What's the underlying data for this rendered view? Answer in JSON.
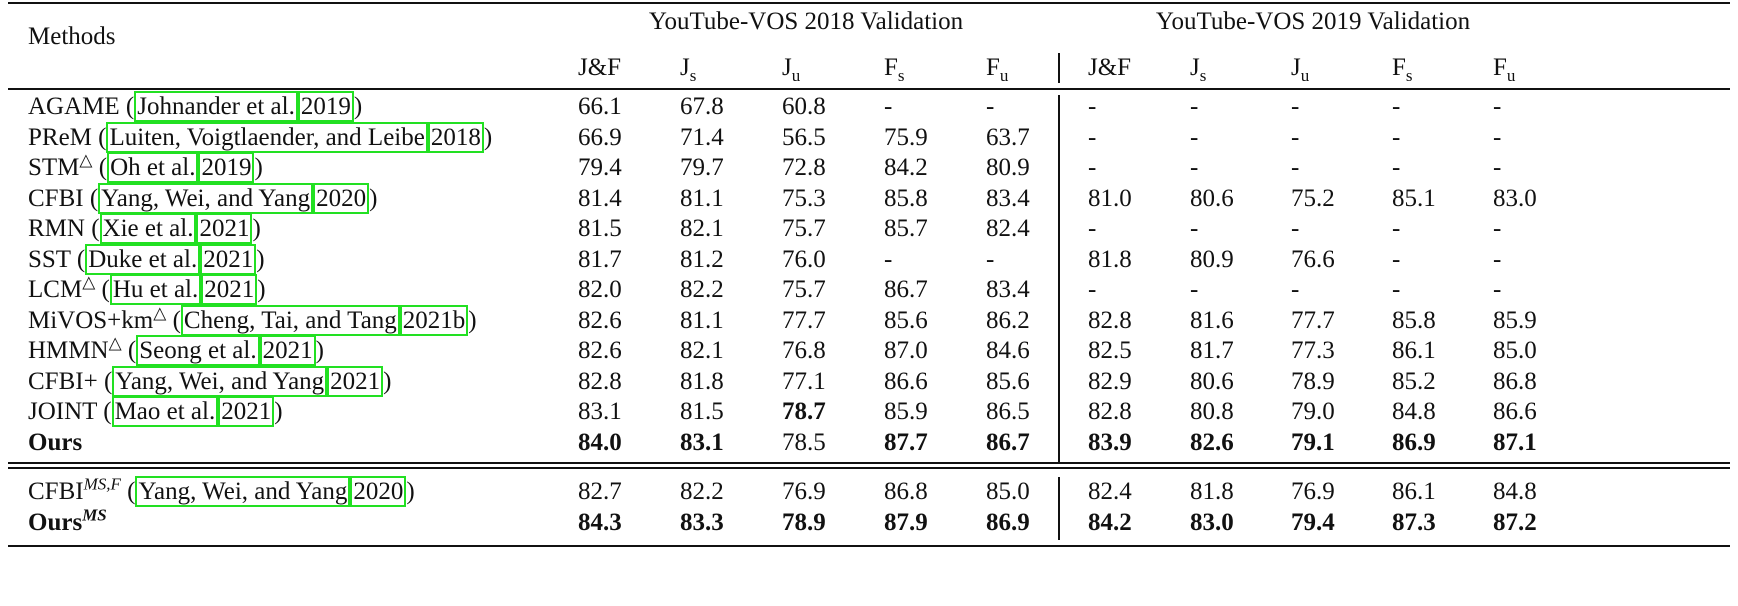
{
  "table": {
    "method_header": "Methods",
    "groups": [
      {
        "title": "YouTube-VOS 2018 Validation",
        "columns": [
          {
            "main": "J&F"
          },
          {
            "main": "J",
            "sub": "s"
          },
          {
            "main": "J",
            "sub": "u"
          },
          {
            "main": "F",
            "sub": "s"
          },
          {
            "main": "F",
            "sub": "u"
          }
        ]
      },
      {
        "title": "YouTube-VOS 2019 Validation",
        "columns": [
          {
            "main": "J&F"
          },
          {
            "main": "J",
            "sub": "s"
          },
          {
            "main": "J",
            "sub": "u"
          },
          {
            "main": "F",
            "sub": "s"
          },
          {
            "main": "F",
            "sub": "u"
          }
        ]
      }
    ],
    "sections": [
      {
        "rows": [
          {
            "method": "AGAME",
            "prefix": "(",
            "authors": "Johnander et al.",
            "year": "2019",
            "suffix": ")",
            "values": [
              "66.1",
              "67.8",
              "60.8",
              "-",
              "-",
              "-",
              "-",
              "-",
              "-",
              "-"
            ]
          },
          {
            "method": "PReM",
            "prefix": "(",
            "authors": "Luiten, Voigtlaender, and Leibe",
            "year": "2018",
            "suffix": ")",
            "values": [
              "66.9",
              "71.4",
              "56.5",
              "75.9",
              "63.7",
              "-",
              "-",
              "-",
              "-",
              "-"
            ]
          },
          {
            "method": "STM",
            "sup": "△",
            "prefix": "(",
            "authors": "Oh et al.",
            "year": "2019",
            "suffix": ")",
            "values": [
              "79.4",
              "79.7",
              "72.8",
              "84.2",
              "80.9",
              "-",
              "-",
              "-",
              "-",
              "-"
            ]
          },
          {
            "method": "CFBI",
            "prefix": "(",
            "authors": "Yang, Wei, and Yang",
            "year": "2020",
            "suffix": ")",
            "values": [
              "81.4",
              "81.1",
              "75.3",
              "85.8",
              "83.4",
              "81.0",
              "80.6",
              "75.2",
              "85.1",
              "83.0"
            ]
          },
          {
            "method": "RMN",
            "prefix": "(",
            "authors": "Xie et al.",
            "year": "2021",
            "suffix": ")",
            "values": [
              "81.5",
              "82.1",
              "75.7",
              "85.7",
              "82.4",
              "-",
              "-",
              "-",
              "-",
              "-"
            ]
          },
          {
            "method": "SST",
            "prefix": "(",
            "authors": "Duke et al.",
            "year": "2021",
            "suffix": ")",
            "values": [
              "81.7",
              "81.2",
              "76.0",
              "-",
              "-",
              "81.8",
              "80.9",
              "76.6",
              "-",
              "-"
            ]
          },
          {
            "method": "LCM",
            "sup": "△",
            "prefix": "(",
            "authors": "Hu et al.",
            "year": "2021",
            "suffix": ")",
            "values": [
              "82.0",
              "82.2",
              "75.7",
              "86.7",
              "83.4",
              "-",
              "-",
              "-",
              "-",
              "-"
            ]
          },
          {
            "method": "MiVOS+km",
            "sup": "△",
            "prefix": "(",
            "authors": "Cheng, Tai, and Tang",
            "year": "2021b",
            "suffix": ")",
            "values": [
              "82.6",
              "81.1",
              "77.7",
              "85.6",
              "86.2",
              "82.8",
              "81.6",
              "77.7",
              "85.8",
              "85.9"
            ]
          },
          {
            "method": "HMMN",
            "sup": "△",
            "prefix": "(",
            "authors": "Seong et al.",
            "year": "2021",
            "suffix": ")",
            "values": [
              "82.6",
              "82.1",
              "76.8",
              "87.0",
              "84.6",
              "82.5",
              "81.7",
              "77.3",
              "86.1",
              "85.0"
            ]
          },
          {
            "method": "CFBI+",
            "prefix": "(",
            "authors": "Yang, Wei, and Yang",
            "year": "2021",
            "suffix": ")",
            "values": [
              "82.8",
              "81.8",
              "77.1",
              "86.6",
              "85.6",
              "82.9",
              "80.6",
              "78.9",
              "85.2",
              "86.8"
            ]
          },
          {
            "method": "JOINT",
            "prefix": "(",
            "authors": "Mao et al.",
            "year": "2021",
            "suffix": ")",
            "values": [
              "83.1",
              "81.5",
              "78.7",
              "85.9",
              "86.5",
              "82.8",
              "80.8",
              "79.0",
              "84.8",
              "86.6"
            ],
            "bold": [
              false,
              false,
              true,
              false,
              false,
              false,
              false,
              false,
              false,
              false
            ]
          },
          {
            "method": "Ours",
            "method_bold": true,
            "values": [
              "84.0",
              "83.1",
              "78.5",
              "87.7",
              "86.7",
              "83.9",
              "82.6",
              "79.1",
              "86.9",
              "87.1"
            ],
            "bold": [
              true,
              true,
              false,
              true,
              true,
              true,
              true,
              true,
              true,
              true
            ]
          }
        ]
      },
      {
        "rows": [
          {
            "method": "CFBI",
            "sup": "MS,F",
            "prefix": "(",
            "authors": "Yang, Wei, and Yang",
            "year": "2020",
            "suffix": ")",
            "values": [
              "82.7",
              "82.2",
              "76.9",
              "86.8",
              "85.0",
              "82.4",
              "81.8",
              "76.9",
              "86.1",
              "84.8"
            ]
          },
          {
            "method": "Ours",
            "sup": "MS",
            "method_bold": true,
            "values": [
              "84.3",
              "83.3",
              "78.9",
              "87.9",
              "86.9",
              "84.2",
              "83.0",
              "79.4",
              "87.3",
              "87.2"
            ],
            "bold": [
              true,
              true,
              true,
              true,
              true,
              true,
              true,
              true,
              true,
              true
            ]
          }
        ]
      }
    ]
  }
}
